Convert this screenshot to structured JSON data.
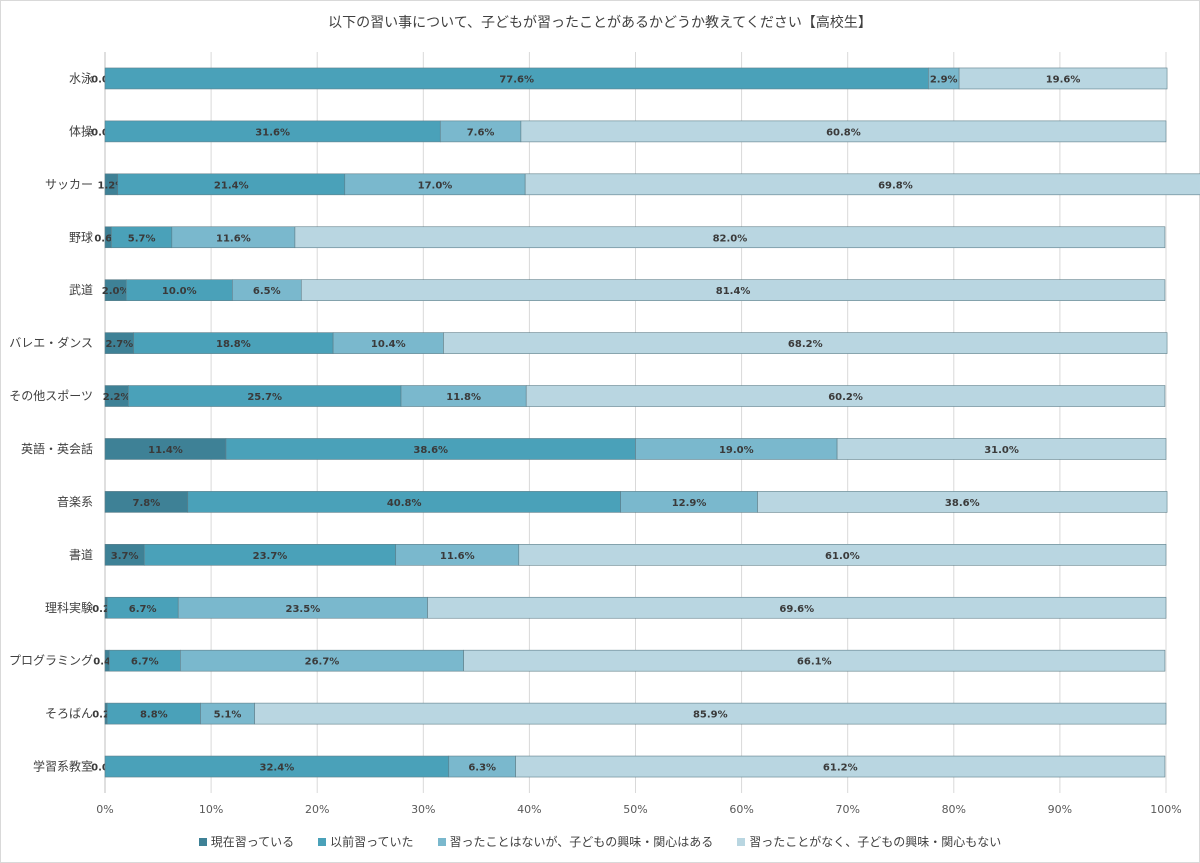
{
  "chart_data": {
    "type": "bar",
    "orientation": "horizontal",
    "stacked": "percent",
    "title": "以下の習い事について、子どもが習ったことがあるかどうか教えてください【高校生】",
    "categories": [
      "水泳",
      "体操",
      "サッカー",
      "野球",
      "武道",
      "バレエ・ダンス",
      "その他スポーツ",
      "英語・英会話",
      "音楽系",
      "書道",
      "理科実験",
      "プログラミング",
      "そろばん",
      "学習系教室"
    ],
    "series": [
      {
        "name": "現在習っている",
        "color": "#3e8196",
        "values": [
          0.0,
          0.0,
          1.2,
          0.6,
          2.0,
          2.7,
          2.2,
          11.4,
          7.8,
          3.7,
          0.2,
          0.4,
          0.2,
          0.0
        ]
      },
      {
        "name": "以前習っていた",
        "color": "#4aa1b9",
        "values": [
          77.6,
          31.6,
          21.4,
          5.7,
          10.0,
          18.8,
          25.7,
          38.6,
          40.8,
          23.7,
          6.7,
          6.7,
          8.8,
          32.4
        ]
      },
      {
        "name": "習ったことはないが、子どもの興味・関心はある",
        "color": "#7ab8cd",
        "values": [
          2.9,
          7.6,
          17.0,
          11.6,
          6.5,
          10.4,
          11.8,
          19.0,
          12.9,
          11.6,
          23.5,
          26.7,
          5.1,
          6.3
        ]
      },
      {
        "name": "習ったことがなく、子どもの興味・関心もない",
        "color": "#b9d6e1",
        "values": [
          19.6,
          60.8,
          69.8,
          82.0,
          81.4,
          68.2,
          60.2,
          31.0,
          38.6,
          61.0,
          69.6,
          66.1,
          85.9,
          61.2
        ]
      }
    ],
    "xticks": [
      "0%",
      "10%",
      "20%",
      "30%",
      "40%",
      "50%",
      "60%",
      "70%",
      "80%",
      "90%",
      "100%"
    ],
    "xlim": [
      0,
      100
    ],
    "grid": true,
    "legend": "bottom"
  }
}
